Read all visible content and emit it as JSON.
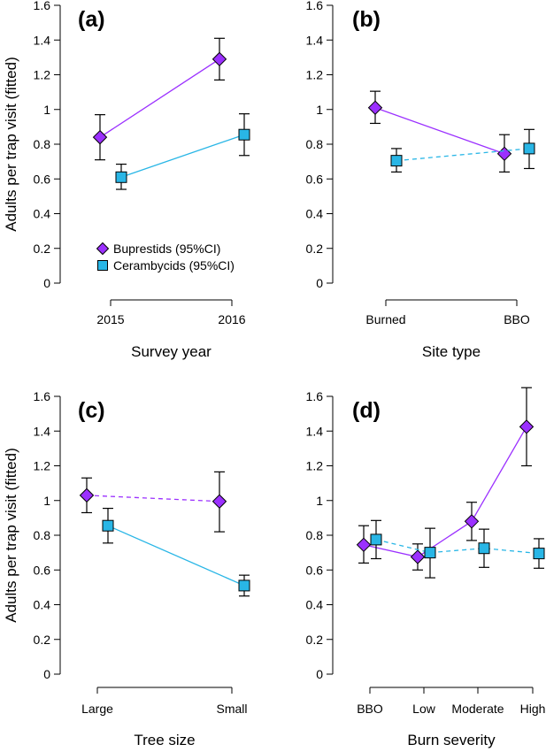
{
  "figure": {
    "ylabel": "Adults per trap visit (fitted)",
    "colors": {
      "buprestids": "#9B30FF",
      "cerambycids": "#29B6E6",
      "errorbar": "#000000"
    }
  },
  "legend": {
    "items": [
      {
        "label": "Buprestids (95%CI)",
        "marker": "diamond",
        "color": "#9B30FF"
      },
      {
        "label": "Cerambycids (95%CI)",
        "marker": "square",
        "color": "#29B6E6"
      }
    ]
  },
  "chart_data": [
    {
      "panel": "(a)",
      "type": "line",
      "xlabel": "Survey year",
      "ylabel": "Adults per trap visit (fitted)",
      "categories": [
        "2015",
        "2016"
      ],
      "ylim": [
        0,
        1.6
      ],
      "yticks": [
        "0",
        "0.2",
        "0.4",
        "0.6",
        "0.8",
        "1",
        "1.2",
        "1.4",
        "1.6"
      ],
      "series": [
        {
          "name": "Buprestids (95%CI)",
          "marker": "diamond",
          "color": "#9B30FF",
          "linestyle": "solid",
          "values": [
            0.84,
            1.29
          ],
          "lower": [
            0.71,
            1.17
          ],
          "upper": [
            0.97,
            1.41
          ]
        },
        {
          "name": "Cerambycids (95%CI)",
          "marker": "square",
          "color": "#29B6E6",
          "linestyle": "solid",
          "values": [
            0.61,
            0.855
          ],
          "lower": [
            0.54,
            0.735
          ],
          "upper": [
            0.685,
            0.975
          ]
        }
      ]
    },
    {
      "panel": "(b)",
      "type": "line",
      "xlabel": "Site type",
      "ylabel": "",
      "categories": [
        "Burned",
        "BBO"
      ],
      "ylim": [
        0,
        1.6
      ],
      "yticks": [
        "0",
        "0.2",
        "0.4",
        "0.6",
        "0.8",
        "1",
        "1.2",
        "1.4",
        "1.6"
      ],
      "series": [
        {
          "name": "Buprestids (95%CI)",
          "marker": "diamond",
          "color": "#9B30FF",
          "linestyle": "solid",
          "values": [
            1.01,
            0.745
          ],
          "lower": [
            0.92,
            0.64
          ],
          "upper": [
            1.105,
            0.855
          ]
        },
        {
          "name": "Cerambycids (95%CI)",
          "marker": "square",
          "color": "#29B6E6",
          "linestyle": "dashed",
          "values": [
            0.705,
            0.775
          ],
          "lower": [
            0.64,
            0.66
          ],
          "upper": [
            0.775,
            0.885
          ]
        }
      ]
    },
    {
      "panel": "(c)",
      "type": "line",
      "xlabel": "Tree size",
      "ylabel": "Adults per trap visit (fitted)",
      "categories": [
        "Large",
        "Small"
      ],
      "ylim": [
        0,
        1.6
      ],
      "yticks": [
        "0",
        "0.2",
        "0.4",
        "0.6",
        "0.8",
        "1",
        "1.2",
        "1.4",
        "1.6"
      ],
      "series": [
        {
          "name": "Buprestids (95%CI)",
          "marker": "diamond",
          "color": "#9B30FF",
          "linestyle": "dashed",
          "values": [
            1.03,
            0.995
          ],
          "lower": [
            0.93,
            0.82
          ],
          "upper": [
            1.13,
            1.165
          ]
        },
        {
          "name": "Cerambycids (95%CI)",
          "marker": "square",
          "color": "#29B6E6",
          "linestyle": "solid",
          "values": [
            0.855,
            0.51
          ],
          "lower": [
            0.755,
            0.45
          ],
          "upper": [
            0.955,
            0.57
          ]
        }
      ]
    },
    {
      "panel": "(d)",
      "type": "line",
      "xlabel": "Burn severity",
      "ylabel": "",
      "categories": [
        "BBO",
        "Low",
        "Moderate",
        "High"
      ],
      "ylim": [
        0,
        1.6
      ],
      "yticks": [
        "0",
        "0.2",
        "0.4",
        "0.6",
        "0.8",
        "1",
        "1.2",
        "1.4",
        "1.6"
      ],
      "series": [
        {
          "name": "Buprestids (95%CI)",
          "marker": "diamond",
          "color": "#9B30FF",
          "linestyle": "solid",
          "values": [
            0.745,
            0.675,
            0.88,
            1.425
          ],
          "lower": [
            0.64,
            0.6,
            0.77,
            1.2
          ],
          "upper": [
            0.855,
            0.75,
            0.99,
            1.65
          ]
        },
        {
          "name": "Cerambycids (95%CI)",
          "marker": "square",
          "color": "#29B6E6",
          "linestyle": "dashed",
          "values": [
            0.775,
            0.7,
            0.725,
            0.695
          ],
          "lower": [
            0.665,
            0.555,
            0.615,
            0.61
          ],
          "upper": [
            0.885,
            0.84,
            0.835,
            0.78
          ]
        }
      ]
    }
  ]
}
